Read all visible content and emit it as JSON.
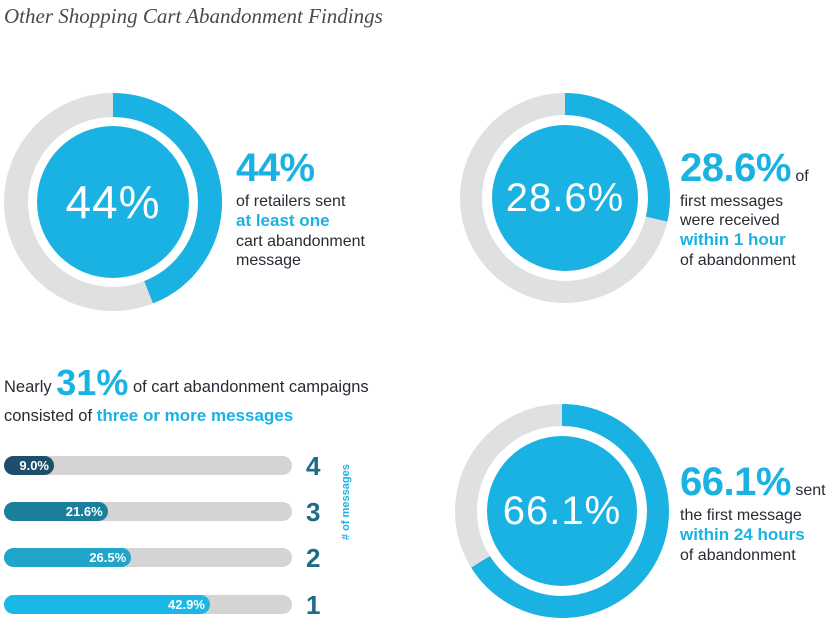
{
  "title": "Other Shopping Cart Abandonment Findings",
  "colors": {
    "accent": "#1ab2e2",
    "ring_track": "#dfe0e2",
    "bar_track": "#d4d4d4",
    "bar_4": "#1d4f6a",
    "bar_3": "#1b7f9c",
    "bar_2": "#21a4c9",
    "bar_1": "#1ab8e6",
    "number": "#1e6b85"
  },
  "stats": {
    "retailers": {
      "center": "44%",
      "big": "44%",
      "line1": "of retailers sent",
      "highlight": "at least one",
      "line3": "cart abandonment",
      "line4": "message"
    },
    "first_hour": {
      "center": "28.6%",
      "big": "28.6%",
      "suffix": "of",
      "line1": "first messages",
      "line2": "were received",
      "highlight": "within 1 hour",
      "line4": "of abandonment"
    },
    "first_day": {
      "center": "66.1%",
      "big": "66.1%",
      "suffix": "sent",
      "line1": "the first message",
      "highlight": "within 24 hours",
      "line3": "of abandonment"
    }
  },
  "bars_intro": {
    "prefix": "Nearly",
    "big": "31%",
    "text1": "of cart abandonment campaigns",
    "text2": "consisted of",
    "highlight": "three or more messages"
  },
  "axis_label": "# of messages",
  "chart_data": [
    {
      "type": "pie",
      "values": [
        44,
        56
      ],
      "categories": [
        "sent at least one message",
        "remaining"
      ]
    },
    {
      "type": "pie",
      "values": [
        28.6,
        71.4
      ],
      "categories": [
        "received within 1 hour",
        "remaining"
      ]
    },
    {
      "type": "pie",
      "values": [
        66.1,
        33.9
      ],
      "categories": [
        "sent within 24 hours",
        "remaining"
      ]
    },
    {
      "type": "bar",
      "orientation": "horizontal",
      "categories": [
        "4",
        "3",
        "2",
        "1"
      ],
      "values": [
        9.0,
        21.6,
        26.5,
        42.9
      ],
      "labels": [
        "9.0%",
        "21.6%",
        "26.5%",
        "42.9%"
      ],
      "ylabel": "# of messages",
      "xlim": [
        0,
        60
      ]
    }
  ]
}
